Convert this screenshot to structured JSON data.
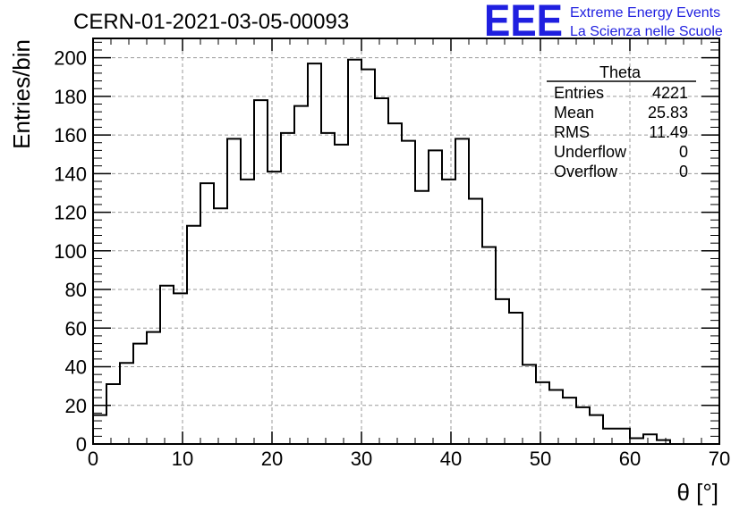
{
  "chart_data": {
    "type": "bar",
    "title": "CERN-01-2021-03-05-00093",
    "xlabel": "θ [°]",
    "ylabel": "Entries/bin",
    "xlim": [
      0,
      70
    ],
    "ylim": [
      0,
      210
    ],
    "x_ticks": [
      0,
      10,
      20,
      30,
      40,
      50,
      60,
      70
    ],
    "y_ticks": [
      0,
      20,
      40,
      60,
      80,
      100,
      120,
      140,
      160,
      180,
      200
    ],
    "grid": true,
    "bin_width": 1.5,
    "bin_start": 0,
    "values": [
      15,
      31,
      42,
      52,
      58,
      82,
      78,
      113,
      135,
      122,
      158,
      137,
      178,
      141,
      161,
      175,
      197,
      161,
      155,
      199,
      194,
      179,
      166,
      157,
      131,
      152,
      137,
      158,
      127,
      102,
      75,
      68,
      41,
      32,
      28,
      24,
      19,
      15,
      8,
      8,
      3,
      5,
      2
    ],
    "histogram_color": "#000000"
  },
  "stats_box": {
    "title": "Theta",
    "rows": [
      {
        "label": "Entries",
        "value": "4221"
      },
      {
        "label": "Mean",
        "value": "25.83"
      },
      {
        "label": "RMS",
        "value": "11.49"
      },
      {
        "label": "Underflow",
        "value": "0"
      },
      {
        "label": "Overflow",
        "value": "0"
      }
    ]
  },
  "logo": {
    "letters": "EEE",
    "line1": "Extreme Energy Events",
    "line2": "La Scienza nelle Scuole",
    "color": "#1f1fe0"
  }
}
